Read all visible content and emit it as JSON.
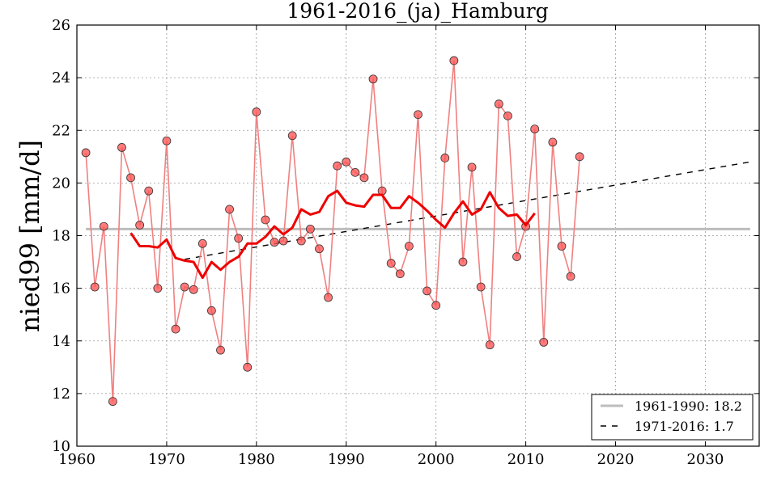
{
  "chart_data": {
    "type": "line",
    "title": "1961-2016_(ja)_Hamburg",
    "xlabel": "",
    "ylabel": "nied99 [mm/d]",
    "xlim": [
      1960,
      2036
    ],
    "ylim": [
      10,
      26
    ],
    "x_ticks": [
      1960,
      1970,
      1980,
      1990,
      2000,
      2010,
      2020,
      2030
    ],
    "y_ticks": [
      10,
      12,
      14,
      16,
      18,
      20,
      22,
      24,
      26
    ],
    "grid": true,
    "legend_position": "bottom-right",
    "colors": {
      "annual": "#f08080",
      "annual_marker": "#ff5555",
      "running_mean": "#ee0000",
      "reference": "#bdbdbd",
      "trend": "#000000"
    },
    "series": [
      {
        "x": [
          1961,
          1962,
          1963,
          1964,
          1965,
          1966,
          1967,
          1968,
          1969,
          1970,
          1971,
          1972,
          1973,
          1974,
          1975,
          1976,
          1977,
          1978,
          1979,
          1980,
          1981,
          1982,
          1983,
          1984,
          1985,
          1986,
          1987,
          1988,
          1989,
          1990,
          1991,
          1992,
          1993,
          1994,
          1995,
          1996,
          1997,
          1998,
          1999,
          2000,
          2001,
          2002,
          2003,
          2004,
          2005,
          2006,
          2007,
          2008,
          2009,
          2010,
          2011,
          2012,
          2013,
          2014,
          2015,
          2016
        ],
        "values": [
          21.15,
          16.05,
          18.35,
          11.7,
          21.35,
          20.2,
          18.4,
          19.7,
          16.0,
          21.6,
          14.45,
          16.05,
          15.95,
          17.7,
          15.15,
          13.65,
          19.0,
          17.9,
          13.0,
          22.7,
          18.6,
          17.75,
          17.8,
          21.8,
          17.8,
          18.25,
          17.5,
          15.65,
          20.65,
          20.8,
          20.4,
          20.2,
          23.95,
          19.7,
          16.95,
          16.55,
          17.6,
          22.6,
          15.9,
          15.35,
          20.95,
          24.65,
          17.0,
          20.6,
          16.05,
          13.85,
          23.0,
          22.55,
          17.2,
          18.35,
          22.05,
          13.95,
          21.55,
          17.6,
          16.45,
          21.0
        ]
      },
      {
        "x": [
          1966,
          1967,
          1968,
          1969,
          1970,
          1971,
          1972,
          1973,
          1974,
          1975,
          1976,
          1977,
          1978,
          1979,
          1980,
          1981,
          1982,
          1983,
          1984,
          1985,
          1986,
          1987,
          1988,
          1989,
          1990,
          1991,
          1992,
          1993,
          1994,
          1995,
          1996,
          1997,
          1998,
          1999,
          2000,
          2001,
          2002,
          2003,
          2004,
          2005,
          2006,
          2007,
          2008,
          2009,
          2010,
          2011
        ],
        "values": [
          18.1,
          17.6,
          17.6,
          17.55,
          17.85,
          17.15,
          17.05,
          17.0,
          16.4,
          17.0,
          16.7,
          17.0,
          17.2,
          17.7,
          17.7,
          17.95,
          18.35,
          18.05,
          18.3,
          19.0,
          18.8,
          18.9,
          19.5,
          19.7,
          19.25,
          19.15,
          19.1,
          19.55,
          19.55,
          19.05,
          19.05,
          19.5,
          19.25,
          18.95,
          18.6,
          18.3,
          18.85,
          19.3,
          18.8,
          19.0,
          19.65,
          19.05,
          18.75,
          18.8,
          18.4,
          18.85
        ]
      },
      {
        "name": "1961-1990: 18.2",
        "x": [
          1961,
          2035
        ],
        "values": [
          18.25,
          18.25
        ]
      },
      {
        "name": "1971-2016: 1.7",
        "x": [
          1972,
          2035
        ],
        "values": [
          17.1,
          20.8
        ]
      }
    ]
  }
}
